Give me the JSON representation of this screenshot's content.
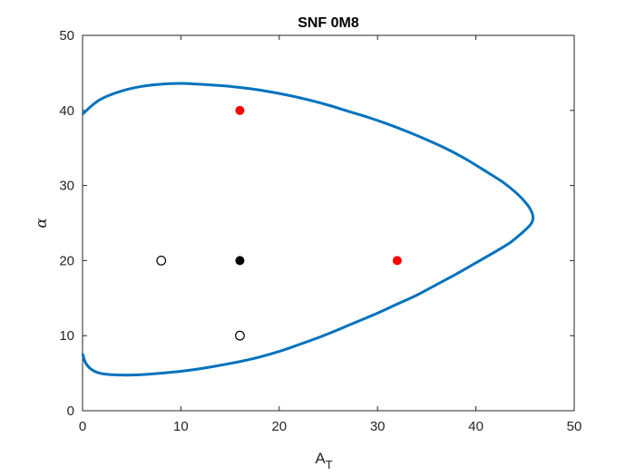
{
  "chart_data": {
    "type": "scatter",
    "title": "SNF 0M8",
    "xlabel": "A",
    "xlabel_subscript": "T",
    "ylabel": "α",
    "xlim": [
      0,
      50
    ],
    "ylim": [
      0,
      50
    ],
    "xticks": [
      0,
      10,
      20,
      30,
      40,
      50
    ],
    "yticks": [
      0,
      10,
      20,
      30,
      40,
      50
    ],
    "grid": false,
    "curve": {
      "color": "#0072BD",
      "points": [
        [
          0,
          7.6
        ],
        [
          0.3,
          6.4
        ],
        [
          0.8,
          5.6
        ],
        [
          1.5,
          5.1
        ],
        [
          2.5,
          4.85
        ],
        [
          4,
          4.75
        ],
        [
          6,
          4.8
        ],
        [
          8,
          5.0
        ],
        [
          10,
          5.25
        ],
        [
          12,
          5.6
        ],
        [
          14,
          6.05
        ],
        [
          16,
          6.55
        ],
        [
          18,
          7.15
        ],
        [
          20,
          7.9
        ],
        [
          22,
          8.8
        ],
        [
          24,
          9.75
        ],
        [
          26,
          10.8
        ],
        [
          28,
          11.9
        ],
        [
          30,
          13.0
        ],
        [
          32,
          14.2
        ],
        [
          34,
          15.4
        ],
        [
          36,
          16.8
        ],
        [
          38,
          18.2
        ],
        [
          40,
          19.7
        ],
        [
          42,
          21.2
        ],
        [
          43.5,
          22.4
        ],
        [
          44.7,
          23.7
        ],
        [
          45.5,
          24.7
        ],
        [
          45.8,
          25.5
        ],
        [
          45.7,
          26.4
        ],
        [
          45.2,
          27.5
        ],
        [
          44.2,
          28.9
        ],
        [
          42.8,
          30.4
        ],
        [
          41,
          31.9
        ],
        [
          39,
          33.5
        ],
        [
          37,
          34.9
        ],
        [
          35,
          36.1
        ],
        [
          33,
          37.2
        ],
        [
          31,
          38.2
        ],
        [
          29,
          39.1
        ],
        [
          27,
          39.9
        ],
        [
          25,
          40.7
        ],
        [
          23,
          41.4
        ],
        [
          21,
          42.0
        ],
        [
          19,
          42.5
        ],
        [
          17,
          42.9
        ],
        [
          15,
          43.2
        ],
        [
          13,
          43.4
        ],
        [
          11,
          43.55
        ],
        [
          10,
          43.6
        ],
        [
          8,
          43.5
        ],
        [
          6,
          43.2
        ],
        [
          4,
          42.6
        ],
        [
          2,
          41.6
        ],
        [
          1,
          40.7
        ],
        [
          0,
          39.5
        ]
      ]
    },
    "points": [
      {
        "x": 16,
        "y": 40,
        "style": "filled",
        "color": "#FF0000"
      },
      {
        "x": 32,
        "y": 20,
        "style": "filled",
        "color": "#FF0000"
      },
      {
        "x": 16,
        "y": 20,
        "style": "filled",
        "color": "#000000"
      },
      {
        "x": 8,
        "y": 20,
        "style": "open",
        "color": "#000000"
      },
      {
        "x": 16,
        "y": 10,
        "style": "open",
        "color": "#000000"
      }
    ]
  }
}
